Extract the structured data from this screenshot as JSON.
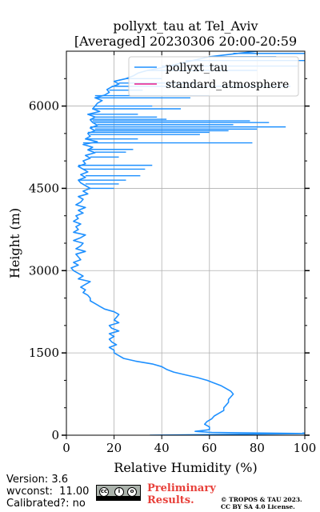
{
  "chart_data": {
    "type": "line",
    "title": "pollyxt_tau at Tel_Aviv",
    "subtitle": "[Averaged] 20230306 20:00-20:59",
    "xlabel": "Relative Humidity (%)",
    "ylabel": "Height (m)",
    "xlim": [
      0,
      100
    ],
    "ylim": [
      0,
      7000
    ],
    "xticks": [
      0,
      20,
      40,
      60,
      80,
      100
    ],
    "yticks": [
      0,
      1500,
      3000,
      4500,
      6000
    ],
    "grid": true,
    "legend_position": "top-right",
    "series": [
      {
        "name": "pollyxt_tau",
        "color": "#1e90ff",
        "profile": [
          [
            0,
            35
          ],
          [
            30,
            100
          ],
          [
            50,
            61
          ],
          [
            70,
            54
          ],
          [
            100,
            60
          ],
          [
            150,
            60
          ],
          [
            200,
            58
          ],
          [
            250,
            59
          ],
          [
            300,
            61
          ],
          [
            350,
            62
          ],
          [
            400,
            64
          ],
          [
            450,
            66
          ],
          [
            500,
            66
          ],
          [
            550,
            67
          ],
          [
            600,
            68
          ],
          [
            650,
            68
          ],
          [
            700,
            69
          ],
          [
            750,
            70
          ],
          [
            800,
            69
          ],
          [
            850,
            67
          ],
          [
            900,
            65
          ],
          [
            950,
            62
          ],
          [
            1000,
            59
          ],
          [
            1050,
            55
          ],
          [
            1100,
            50
          ],
          [
            1150,
            45
          ],
          [
            1200,
            42
          ],
          [
            1250,
            40
          ],
          [
            1300,
            36
          ],
          [
            1350,
            29
          ],
          [
            1400,
            24
          ],
          [
            1450,
            22
          ],
          [
            1500,
            20
          ],
          [
            1550,
            20
          ],
          [
            1600,
            18
          ],
          [
            1650,
            21
          ],
          [
            1700,
            19
          ],
          [
            1750,
            18
          ],
          [
            1800,
            20
          ],
          [
            1850,
            18
          ],
          [
            1900,
            22
          ],
          [
            1950,
            19
          ],
          [
            2000,
            18
          ],
          [
            2050,
            22
          ],
          [
            2100,
            20
          ],
          [
            2150,
            21
          ],
          [
            2200,
            22
          ],
          [
            2250,
            20
          ],
          [
            2300,
            16
          ],
          [
            2350,
            14
          ],
          [
            2400,
            12
          ],
          [
            2450,
            10
          ],
          [
            2500,
            10
          ],
          [
            2550,
            9
          ],
          [
            2600,
            7
          ],
          [
            2650,
            8
          ],
          [
            2700,
            6
          ],
          [
            2750,
            8
          ],
          [
            2800,
            10
          ],
          [
            2850,
            5
          ],
          [
            2900,
            7
          ],
          [
            2950,
            5
          ],
          [
            3000,
            3
          ],
          [
            3050,
            2
          ],
          [
            3100,
            5
          ],
          [
            3150,
            3
          ],
          [
            3200,
            6
          ],
          [
            3250,
            5
          ],
          [
            3300,
            4
          ],
          [
            3350,
            8
          ],
          [
            3400,
            4
          ],
          [
            3450,
            6
          ],
          [
            3500,
            7
          ],
          [
            3550,
            3
          ],
          [
            3600,
            6
          ],
          [
            3650,
            8
          ],
          [
            3700,
            3
          ],
          [
            3750,
            5
          ],
          [
            3800,
            4
          ],
          [
            3850,
            6
          ],
          [
            3900,
            3
          ],
          [
            3950,
            5
          ],
          [
            4000,
            4
          ],
          [
            4050,
            7
          ],
          [
            4100,
            5
          ],
          [
            4150,
            8
          ],
          [
            4200,
            4
          ],
          [
            4250,
            6
          ],
          [
            4300,
            7
          ],
          [
            4350,
            5
          ],
          [
            4400,
            9
          ],
          [
            4450,
            7
          ],
          [
            4500,
            10
          ],
          [
            4550,
            8
          ],
          [
            4600,
            6
          ],
          [
            4650,
            5
          ],
          [
            4700,
            8
          ],
          [
            4750,
            6
          ],
          [
            4800,
            9
          ],
          [
            4850,
            7
          ],
          [
            4900,
            5
          ],
          [
            4950,
            8
          ],
          [
            5000,
            7
          ],
          [
            5050,
            10
          ],
          [
            5100,
            8
          ],
          [
            5150,
            12
          ],
          [
            5200,
            9
          ],
          [
            5250,
            11
          ],
          [
            5300,
            7
          ],
          [
            5350,
            13
          ],
          [
            5400,
            8
          ],
          [
            5450,
            10
          ],
          [
            5500,
            9
          ],
          [
            5550,
            12
          ],
          [
            5600,
            10
          ],
          [
            5650,
            13
          ],
          [
            5700,
            11
          ],
          [
            5750,
            10
          ],
          [
            5800,
            12
          ],
          [
            5850,
            9
          ],
          [
            5900,
            14
          ],
          [
            5950,
            11
          ],
          [
            6000,
            12
          ],
          [
            6050,
            13
          ],
          [
            6100,
            15
          ],
          [
            6150,
            12
          ],
          [
            6200,
            16
          ],
          [
            6250,
            18
          ],
          [
            6300,
            17
          ],
          [
            6350,
            19
          ],
          [
            6400,
            22
          ],
          [
            6450,
            20
          ],
          [
            6500,
            25
          ],
          [
            6550,
            28
          ],
          [
            6600,
            30
          ],
          [
            6650,
            34
          ],
          [
            6700,
            40
          ],
          [
            6750,
            45
          ],
          [
            6800,
            50
          ],
          [
            6850,
            55
          ],
          [
            6900,
            60
          ],
          [
            6950,
            70
          ],
          [
            7000,
            80
          ]
        ],
        "excursions": [
          [
            40,
            99
          ],
          [
            5330,
            78
          ],
          [
            5400,
            30
          ],
          [
            5480,
            56
          ],
          [
            5520,
            60
          ],
          [
            5550,
            68
          ],
          [
            5580,
            80
          ],
          [
            5620,
            92
          ],
          [
            5660,
            70
          ],
          [
            5700,
            85
          ],
          [
            5730,
            77
          ],
          [
            5760,
            42
          ],
          [
            5800,
            38
          ],
          [
            5850,
            30
          ],
          [
            5950,
            48
          ],
          [
            6000,
            36
          ],
          [
            6150,
            52
          ],
          [
            6190,
            60
          ],
          [
            6290,
            32
          ],
          [
            6360,
            94
          ],
          [
            6420,
            55
          ],
          [
            6500,
            40
          ],
          [
            6650,
            80
          ],
          [
            6730,
            97
          ],
          [
            6830,
            100
          ],
          [
            6900,
            88
          ],
          [
            6960,
            100
          ],
          [
            4500,
            20
          ],
          [
            4580,
            22
          ],
          [
            4650,
            25
          ],
          [
            4730,
            31
          ],
          [
            4850,
            33
          ],
          [
            4920,
            36
          ],
          [
            5070,
            22
          ],
          [
            5160,
            25
          ],
          [
            5210,
            28
          ]
        ]
      },
      {
        "name": "standard_atmosphere",
        "color": "#e5198a",
        "profile": []
      }
    ]
  },
  "footer": {
    "version": "Version: 3.6",
    "wvconst": "wvconst:  11.00",
    "calibrated": "Calibrated?: no",
    "prelim_line1": "Preliminary",
    "prelim_line2": "Results.",
    "license_line1": "© TROPOS & TAU 2023.",
    "license_line2": "CC BY SA 4.0 License."
  }
}
